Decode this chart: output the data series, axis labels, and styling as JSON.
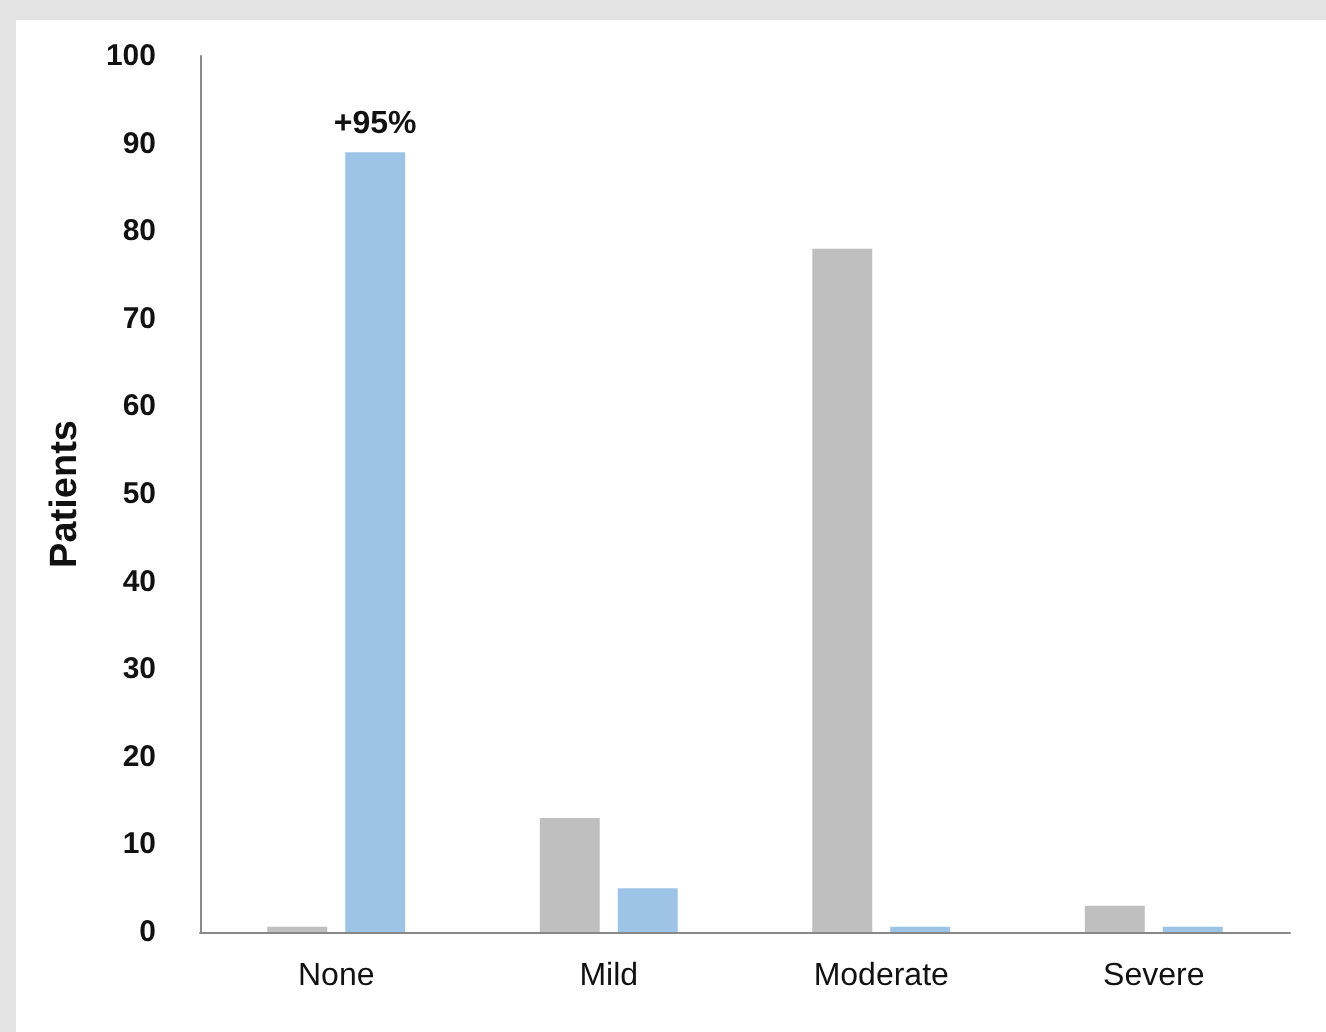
{
  "chart_data": {
    "type": "bar",
    "ylabel": "Patients",
    "categories": [
      "None",
      "Mild",
      "Moderate",
      "Severe"
    ],
    "series": [
      {
        "color": "#bfbfbf",
        "values": [
          0.6,
          13,
          78,
          3
        ]
      },
      {
        "color": "#9dc3e6",
        "values": [
          89,
          5,
          0.6,
          0.6
        ]
      }
    ],
    "ylim": [
      0,
      100
    ],
    "yticks": [
      0,
      10,
      20,
      30,
      40,
      50,
      60,
      70,
      80,
      90,
      100
    ],
    "annotations": [
      {
        "text": "+95%",
        "x": "None",
        "y": 89
      }
    ]
  }
}
